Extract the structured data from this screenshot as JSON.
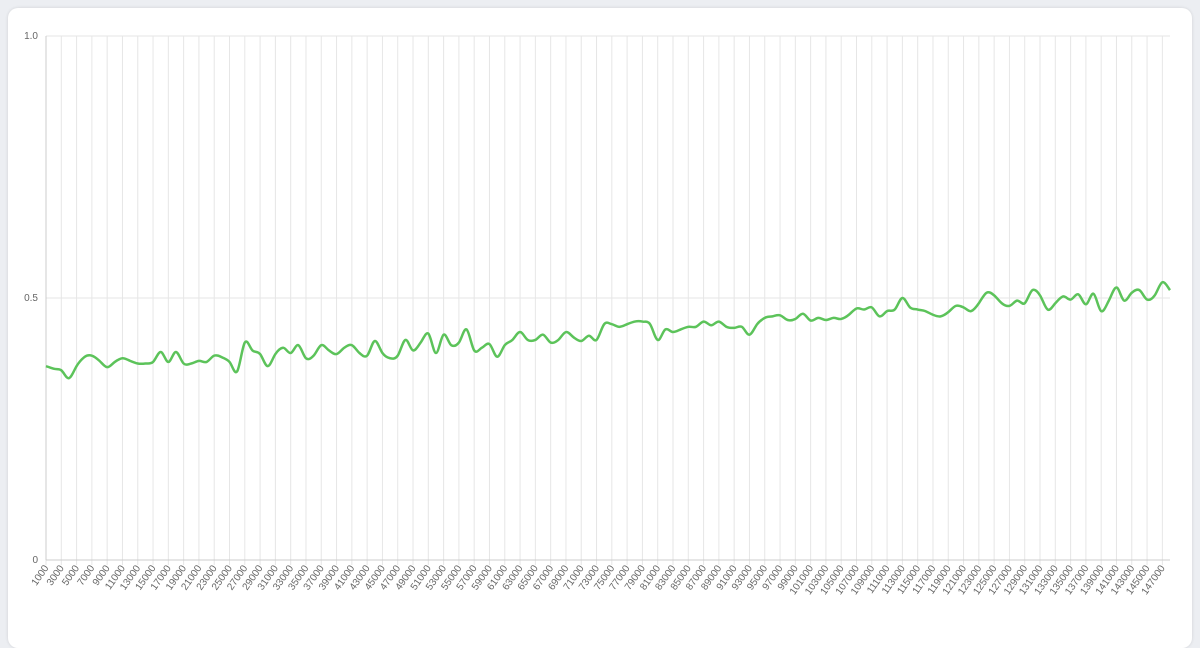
{
  "chart_data": {
    "type": "line",
    "x": [
      1000,
      2000,
      3000,
      4000,
      5000,
      6000,
      7000,
      8000,
      9000,
      10000,
      11000,
      12000,
      13000,
      14000,
      15000,
      16000,
      17000,
      18000,
      19000,
      20000,
      21000,
      22000,
      23000,
      24000,
      25000,
      26000,
      27000,
      28000,
      29000,
      30000,
      31000,
      32000,
      33000,
      34000,
      35000,
      36000,
      37000,
      38000,
      39000,
      40000,
      41000,
      42000,
      43000,
      44000,
      45000,
      46000,
      47000,
      48000,
      49000,
      50000,
      51000,
      52000,
      53000,
      54000,
      55000,
      56000,
      57000,
      58000,
      59000,
      60000,
      61000,
      62000,
      63000,
      64000,
      65000,
      66000,
      67000,
      68000,
      69000,
      70000,
      71000,
      72000,
      73000,
      74000,
      75000,
      76000,
      77000,
      78000,
      79000,
      80000,
      81000,
      82000,
      83000,
      84000,
      85000,
      86000,
      87000,
      88000,
      89000,
      90000,
      91000,
      92000,
      93000,
      94000,
      95000,
      96000,
      97000,
      98000,
      99000,
      100000,
      101000,
      102000,
      103000,
      104000,
      105000,
      106000,
      107000,
      108000,
      109000,
      110000,
      111000,
      112000,
      113000,
      114000,
      115000,
      116000,
      117000,
      118000,
      119000,
      120000,
      121000,
      122000,
      123000,
      124000,
      125000,
      126000,
      127000,
      128000,
      129000,
      130000,
      131000,
      132000,
      133000,
      134000,
      135000,
      136000,
      137000,
      138000,
      139000,
      140000,
      141000,
      142000,
      143000,
      144000,
      145000,
      146000,
      147000,
      148000
    ],
    "series": [
      {
        "color": "#5cc35a",
        "values": [
          0.37,
          0.365,
          0.362,
          0.347,
          0.37,
          0.387,
          0.39,
          0.38,
          0.368,
          0.378,
          0.385,
          0.38,
          0.375,
          0.375,
          0.378,
          0.397,
          0.378,
          0.397,
          0.375,
          0.375,
          0.38,
          0.378,
          0.39,
          0.387,
          0.378,
          0.36,
          0.415,
          0.4,
          0.393,
          0.37,
          0.393,
          0.405,
          0.395,
          0.41,
          0.385,
          0.39,
          0.41,
          0.4,
          0.393,
          0.405,
          0.41,
          0.395,
          0.39,
          0.418,
          0.395,
          0.385,
          0.39,
          0.42,
          0.4,
          0.415,
          0.432,
          0.395,
          0.43,
          0.41,
          0.415,
          0.44,
          0.4,
          0.405,
          0.412,
          0.388,
          0.41,
          0.42,
          0.435,
          0.42,
          0.42,
          0.43,
          0.415,
          0.42,
          0.435,
          0.425,
          0.418,
          0.428,
          0.42,
          0.45,
          0.45,
          0.445,
          0.45,
          0.455,
          0.455,
          0.45,
          0.42,
          0.44,
          0.435,
          0.44,
          0.445,
          0.445,
          0.455,
          0.448,
          0.455,
          0.445,
          0.443,
          0.445,
          0.43,
          0.45,
          0.462,
          0.465,
          0.467,
          0.458,
          0.46,
          0.47,
          0.457,
          0.462,
          0.458,
          0.462,
          0.46,
          0.468,
          0.48,
          0.478,
          0.482,
          0.465,
          0.475,
          0.478,
          0.5,
          0.482,
          0.478,
          0.475,
          0.468,
          0.465,
          0.473,
          0.485,
          0.482,
          0.475,
          0.49,
          0.51,
          0.505,
          0.49,
          0.485,
          0.495,
          0.49,
          0.515,
          0.505,
          0.478,
          0.49,
          0.503,
          0.497,
          0.507,
          0.488,
          0.508,
          0.475,
          0.495,
          0.52,
          0.495,
          0.51,
          0.515,
          0.497,
          0.505,
          0.53,
          0.515
        ]
      }
    ],
    "xlim": [
      1000,
      148000
    ],
    "xticks": [
      1000,
      3000,
      5000,
      7000,
      9000,
      11000,
      13000,
      15000,
      17000,
      19000,
      21000,
      23000,
      25000,
      27000,
      29000,
      31000,
      33000,
      35000,
      37000,
      39000,
      41000,
      43000,
      45000,
      47000,
      49000,
      51000,
      53000,
      55000,
      57000,
      59000,
      61000,
      63000,
      65000,
      67000,
      69000,
      71000,
      73000,
      75000,
      77000,
      79000,
      81000,
      83000,
      85000,
      87000,
      89000,
      91000,
      93000,
      95000,
      97000,
      99000,
      101000,
      103000,
      105000,
      107000,
      109000,
      111000,
      113000,
      115000,
      117000,
      119000,
      121000,
      123000,
      125000,
      127000,
      129000,
      131000,
      133000,
      135000,
      137000,
      139000,
      141000,
      143000,
      145000,
      147000
    ],
    "ylim": [
      0,
      1
    ],
    "yticks": [
      0,
      0.5,
      {
        "value": 1,
        "label": "1.0"
      }
    ],
    "grid": true
  }
}
